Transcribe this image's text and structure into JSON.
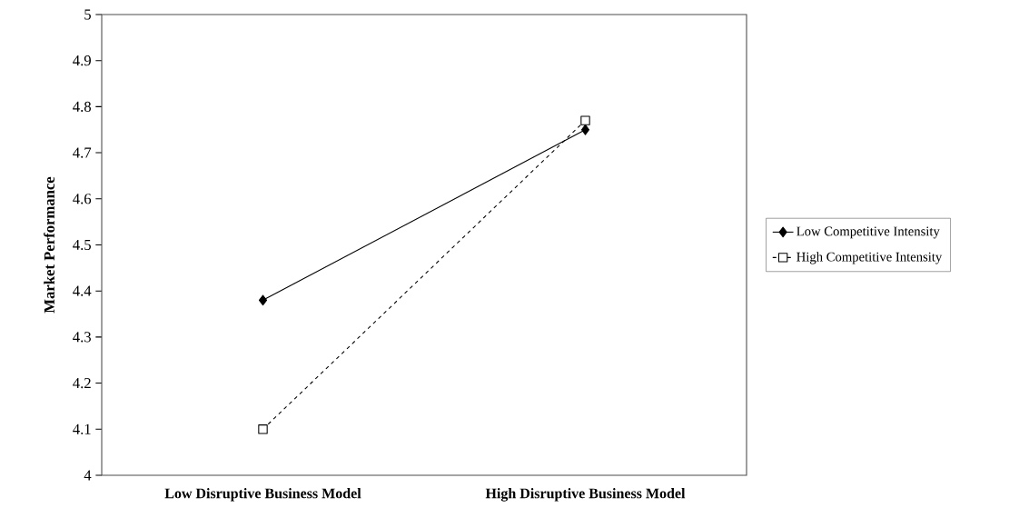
{
  "chart_data": {
    "type": "line",
    "ylabel": "Market  Performance",
    "categories": [
      "Low Disruptive Business Model",
      "High Disruptive Business Model"
    ],
    "series": [
      {
        "name": "Low Competitive Intensity",
        "color": "#000000",
        "values": [
          4.38,
          4.75
        ],
        "marker": "diamond",
        "line_style": "solid"
      },
      {
        "name": "High Competitive Intensity",
        "color": "#000000",
        "values": [
          4.1,
          4.77
        ],
        "marker": "square",
        "line_style": "dashed"
      }
    ],
    "ylim": [
      4,
      5
    ],
    "yticks": [
      4,
      4.1,
      4.2,
      4.3,
      4.4,
      4.5,
      4.6,
      4.7,
      4.8,
      4.9,
      5
    ],
    "grid": false,
    "legend": "right"
  }
}
